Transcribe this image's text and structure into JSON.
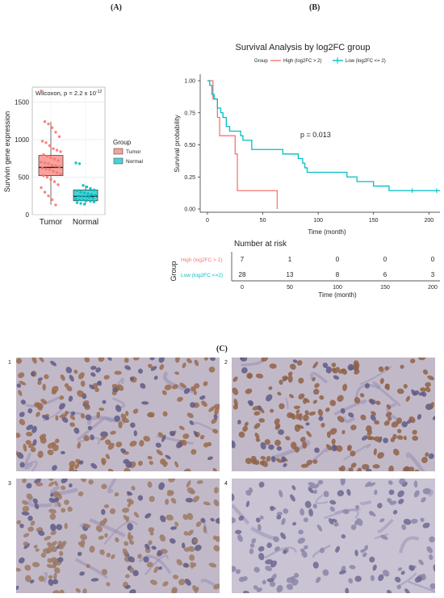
{
  "figure": {
    "panel_a_label": "(A)",
    "panel_b_label": "(B)",
    "panel_c_label": "(C)"
  },
  "chart_data": [
    {
      "type": "box",
      "title": "",
      "annotation": "Wilcoxon, p = 2.2 x 10",
      "annotation_exp": "-12",
      "xlabel": "",
      "ylabel": "Survivin gene expression",
      "categories": [
        "Tumor",
        "Normal"
      ],
      "ylim": [
        0,
        1700
      ],
      "yticks": [
        0,
        500,
        1000,
        1500
      ],
      "grid": true,
      "legend": {
        "title": "Group",
        "entries": [
          "Tumor",
          "Normal"
        ],
        "placement": "right"
      },
      "colors": {
        "Tumor": "#f8766d",
        "Normal": "#00bfc4"
      },
      "boxes": [
        {
          "name": "Tumor",
          "min": 130,
          "q1": 520,
          "median": 630,
          "q3": 790,
          "max": 1240
        },
        {
          "name": "Normal",
          "min": 140,
          "q1": 185,
          "median": 245,
          "q3": 330,
          "max": 390
        }
      ],
      "points": {
        "Tumor": [
          1650,
          1240,
          1210,
          1160,
          1100,
          1040,
          980,
          960,
          920,
          880,
          860,
          840,
          800,
          780,
          760,
          740,
          720,
          700,
          690,
          680,
          660,
          650,
          640,
          620,
          610,
          600,
          580,
          560,
          540,
          520,
          500,
          470,
          440,
          400,
          360,
          300,
          250,
          200,
          130
        ],
        "Normal": [
          690,
          680,
          390,
          370,
          350,
          330,
          320,
          300,
          290,
          280,
          270,
          260,
          250,
          245,
          240,
          230,
          220,
          210,
          200,
          195,
          190,
          180,
          170,
          160,
          150,
          140
        ]
      }
    },
    {
      "type": "line",
      "title": "Survival Analysis by log2FC group",
      "xlabel": "Time (month)",
      "ylabel": "Survival probability",
      "xlim": [
        0,
        210
      ],
      "ylim": [
        0,
        1
      ],
      "xticks": [
        0,
        50,
        100,
        150,
        200
      ],
      "yticks": [
        "0.00",
        "0.25",
        "0.50",
        "0.75",
        "1.00"
      ],
      "annotation": "p = 0.013",
      "legend": {
        "title": "Group",
        "placement": "top"
      },
      "series": [
        {
          "name": "High (log2FC > 2)",
          "color": "#f8766d",
          "steps": [
            [
              0,
              1.0
            ],
            [
              5,
              0.857
            ],
            [
              9,
              0.714
            ],
            [
              11,
              0.571
            ],
            [
              25,
              0.429
            ],
            [
              27,
              0.143
            ],
            [
              63,
              0.0
            ]
          ]
        },
        {
          "name": "Low (log2FC <= 2)",
          "color": "#00bfc4",
          "steps": [
            [
              0,
              1.0
            ],
            [
              2,
              0.964
            ],
            [
              4,
              0.893
            ],
            [
              6,
              0.857
            ],
            [
              9,
              0.786
            ],
            [
              12,
              0.75
            ],
            [
              14,
              0.714
            ],
            [
              17,
              0.643
            ],
            [
              20,
              0.607
            ],
            [
              30,
              0.571
            ],
            [
              32,
              0.536
            ],
            [
              40,
              0.464
            ],
            [
              68,
              0.429
            ],
            [
              82,
              0.393
            ],
            [
              86,
              0.357
            ],
            [
              88,
              0.321
            ],
            [
              90,
              0.286
            ],
            [
              126,
              0.25
            ],
            [
              135,
              0.214
            ],
            [
              150,
              0.179
            ],
            [
              164,
              0.143
            ],
            [
              210,
              0.143
            ]
          ],
          "censor_x": [
            185,
            207
          ]
        }
      ],
      "risk_table": {
        "title": "Number at risk",
        "ylabel": "Group",
        "xlabel": "Time (month)",
        "times": [
          0,
          50,
          100,
          150,
          200
        ],
        "rows": [
          {
            "label": "High (log2FC   > 2)",
            "color": "#f8766d",
            "values": [
              7,
              1,
              0,
              0,
              0
            ]
          },
          {
            "label": "Low (log2FC  <=2)",
            "color": "#00bfc4",
            "values": [
              28,
              13,
              8,
              6,
              3
            ]
          }
        ]
      }
    }
  ],
  "micrographs": [
    {
      "number": "1",
      "stain": "#9a6b4c"
    },
    {
      "number": "2",
      "stain": "#8f6146"
    },
    {
      "number": "3",
      "stain": "#9c7a66"
    },
    {
      "number": "4",
      "stain": "#9a8f9d"
    }
  ]
}
